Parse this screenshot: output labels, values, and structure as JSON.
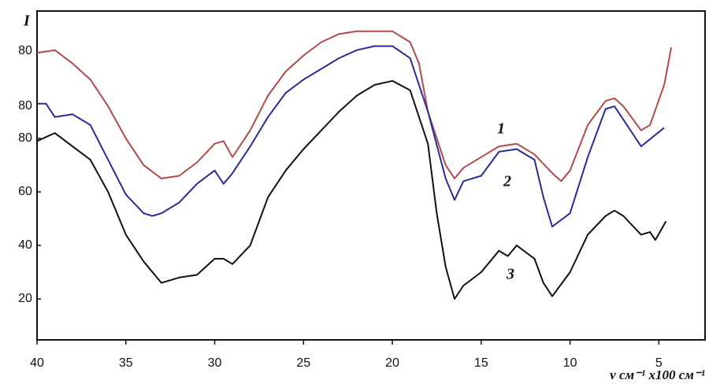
{
  "chart_data": {
    "type": "line",
    "y_label": "I",
    "x_label": "ν см⁻¹ x100 см⁻¹",
    "extra_y_labels": [
      "80",
      "80"
    ],
    "xlim": [
      40,
      2.4
    ],
    "ylim": [
      4.7,
      127.6
    ],
    "xticks": [
      40,
      35,
      30,
      25,
      20,
      15,
      10,
      5
    ],
    "yticks": [
      20,
      40,
      60,
      80
    ],
    "series": [
      {
        "name": "1",
        "color": "#b24a4c",
        "x": [
          40,
          39,
          38,
          37,
          36,
          35,
          34,
          33,
          32,
          31,
          30,
          29.5,
          29,
          28,
          27,
          26,
          25,
          24,
          23,
          22,
          21,
          20,
          19,
          18.5,
          18,
          17,
          16.5,
          16,
          15,
          14,
          13,
          12.5,
          12,
          11,
          10.5,
          10,
          9,
          8,
          7.5,
          7,
          6,
          5.5,
          4.7,
          4.3
        ],
        "values": [
          112,
          113,
          108,
          102,
          92,
          80,
          70,
          65,
          66,
          71,
          78,
          79,
          73,
          83,
          96,
          105,
          111,
          116,
          119,
          120,
          120,
          120,
          116,
          108,
          90,
          70,
          65,
          69,
          73,
          77,
          78,
          76,
          74,
          67,
          64,
          68,
          85,
          94,
          95,
          92,
          83,
          85,
          100,
          114
        ]
      },
      {
        "name": "2",
        "color": "#2b2b96",
        "x": [
          40,
          39.5,
          39,
          38,
          37,
          36,
          35,
          34,
          33.5,
          33,
          32,
          31,
          30,
          29.5,
          29,
          28,
          27,
          26,
          25,
          24,
          23,
          22,
          21,
          20,
          19,
          18,
          17,
          16.5,
          16,
          15,
          14,
          13,
          12,
          11.5,
          11,
          10,
          9,
          8,
          7.5,
          7,
          6,
          4.7
        ],
        "values": [
          93,
          93,
          88,
          89,
          85,
          72,
          59,
          52,
          51,
          52,
          56,
          63,
          68,
          63,
          67,
          77,
          88,
          97,
          102,
          106,
          110,
          113,
          114.5,
          114.5,
          110,
          90,
          65,
          57,
          64,
          66,
          75,
          76,
          72,
          58,
          47,
          52,
          73,
          91,
          92,
          87,
          77,
          84
        ]
      },
      {
        "name": "3",
        "color": "#111111",
        "x": [
          40,
          39,
          38,
          37,
          36,
          35,
          34,
          33,
          32,
          31,
          30,
          29.5,
          29,
          28,
          27,
          26,
          25,
          24,
          23,
          22,
          21,
          20,
          19,
          18,
          17.5,
          17,
          16.5,
          16,
          15,
          14,
          13.5,
          13,
          12,
          11.5,
          11,
          10,
          9,
          8,
          7.5,
          7,
          6,
          5.5,
          5.2,
          4.6
        ],
        "values": [
          79,
          82,
          77,
          72,
          60,
          44,
          34,
          26,
          28,
          29,
          35,
          35,
          33,
          40,
          58,
          68,
          76,
          83,
          90,
          96,
          100,
          101.5,
          98,
          78,
          52,
          32,
          20,
          25,
          30,
          38,
          36,
          40,
          35,
          26,
          21,
          30,
          44,
          51,
          53,
          51,
          44,
          45,
          42,
          49
        ]
      }
    ]
  }
}
